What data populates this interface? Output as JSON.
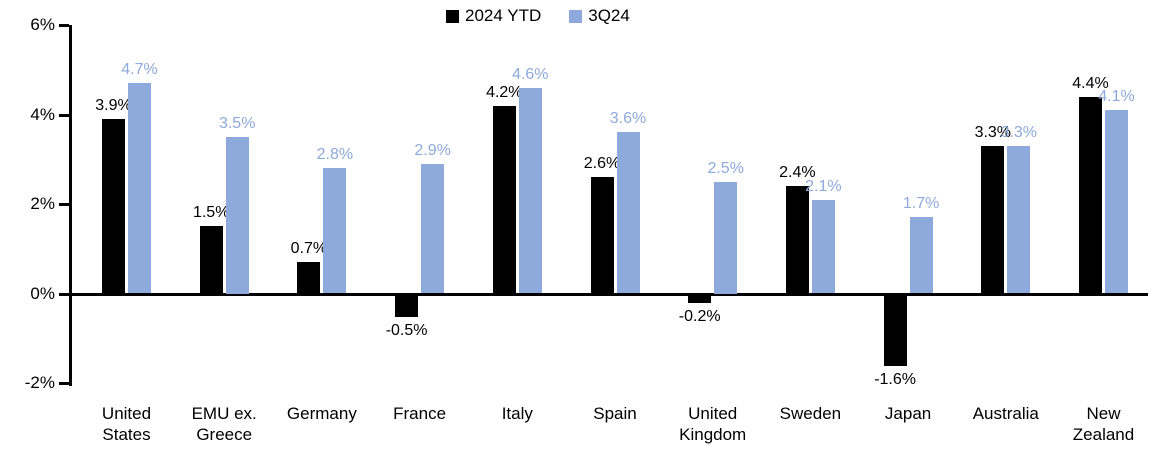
{
  "chart_data": {
    "type": "bar",
    "title": "",
    "xlabel": "",
    "ylabel": "",
    "categories": [
      "United States",
      "EMU ex. Greece",
      "Germany",
      "France",
      "Italy",
      "Spain",
      "United Kingdom",
      "Sweden",
      "Japan",
      "Australia",
      "New Zealand"
    ],
    "series": [
      {
        "name": "2024 YTD",
        "color": "#000000",
        "label_color": "#000000",
        "values": [
          3.9,
          1.5,
          0.7,
          -0.5,
          4.2,
          2.6,
          -0.2,
          2.4,
          -1.6,
          3.3,
          4.4
        ],
        "labels": [
          "3.9%",
          "1.5%",
          "0.7%",
          "-0.5%",
          "4.2%",
          "2.6%",
          "-0.2%",
          "2.4%",
          "-1.6%",
          "3.3%",
          "4.4%"
        ]
      },
      {
        "name": "3Q24",
        "color": "#8EA9DB",
        "label_color": "#8EA9DB",
        "values": [
          4.7,
          3.5,
          2.8,
          2.9,
          4.6,
          3.6,
          2.5,
          2.1,
          1.7,
          3.3,
          4.1
        ],
        "labels": [
          "4.7%",
          "3.5%",
          "2.8%",
          "2.9%",
          "4.6%",
          "3.6%",
          "2.5%",
          "2.1%",
          "1.7%",
          "3.3%",
          "4.1%"
        ]
      }
    ],
    "y_axis": {
      "min": -2,
      "max": 6,
      "ticks": [
        {
          "label": "6%",
          "value": 6
        },
        {
          "label": "4%",
          "value": 4
        },
        {
          "label": "2%",
          "value": 2
        },
        {
          "label": "0%",
          "value": 0
        },
        {
          "label": "-2%",
          "value": -2
        }
      ]
    },
    "legend_position": "top-center",
    "grid": false,
    "value_labels_shown": true
  }
}
